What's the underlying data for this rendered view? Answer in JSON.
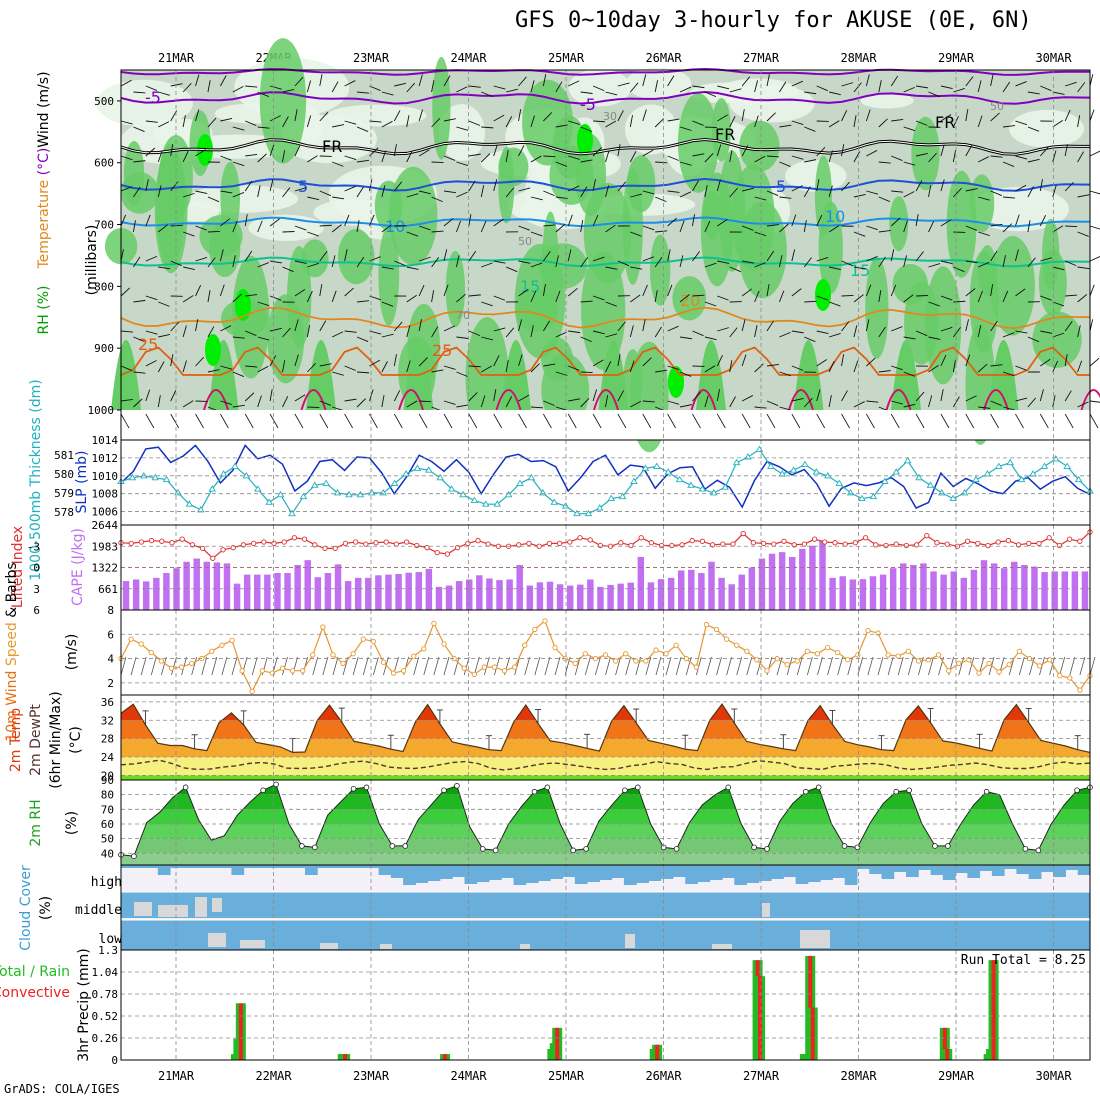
{
  "title": "GFS 0~10day 3-hourly for AKUSE (0E, 6N)",
  "footer": "GrADS: COLA/IGES",
  "dates": [
    "21MAR",
    "22MAR",
    "23MAR",
    "24MAR",
    "25MAR",
    "26MAR",
    "27MAR",
    "28MAR",
    "29MAR",
    "30MAR"
  ],
  "colors": {
    "rh_light": "#e8f5e8",
    "rh_mid": "#c8d8c8",
    "rh_green": "#66cc66",
    "rh_bright": "#00ee00",
    "purple": "#8000c0",
    "blue": "#1e50d8",
    "skyblue": "#1c8ee8",
    "teal": "#10c090",
    "orange": "#e08820",
    "magenta": "#d01070",
    "slp": "#1030c0",
    "thick": "#20b0c0",
    "li": "#e03030",
    "cape": "#c070f0",
    "wind": "#e89830",
    "cloud": "#6aaedc",
    "cloud_clear": "#f4f0f8",
    "precip_total": "#22bb22",
    "precip_conv": "#ee2222"
  },
  "chart_data": [
    {
      "type": "heatmap",
      "name": "Upper-air cross section",
      "ylabel_parts": [
        "RH (%)",
        "Temperature",
        "(°C)",
        "Wind",
        "(m/s)",
        "(millibars)"
      ],
      "y_ticks": [
        500,
        600,
        700,
        800,
        900,
        1000
      ],
      "isotherm_labels": [
        "-5",
        "-5",
        "FR",
        "FR",
        "FR",
        "5",
        "5",
        "10",
        "10",
        "15",
        "15",
        "20",
        "25",
        "25",
        "50",
        "30",
        "50",
        "70"
      ]
    },
    {
      "type": "line",
      "name": "SLP / Thickness",
      "ylabel_left": "1000-500mb Thickness (dm)",
      "ylabel_right": "SLP (mb)",
      "left_ticks": [
        "578",
        "579",
        "580",
        "581"
      ],
      "right_ticks": [
        "1006",
        "1008",
        "1010",
        "1012",
        "1014"
      ],
      "right_ylim": [
        1004.5,
        1014
      ],
      "left_ylim": [
        577.3,
        581.8
      ],
      "slp": [
        1009.2,
        1010.5,
        1013.0,
        1013.2,
        1011.5,
        1012.2,
        1013.4,
        1011.6,
        1009.2,
        1010.6,
        1013.4,
        1011.9,
        1012.3,
        1011.3,
        1008.3,
        1009.4,
        1011.6,
        1011.8,
        1010.6,
        1012.1,
        1012.0,
        1010.3,
        1008.0,
        1009.9,
        1012.3,
        1011.6,
        1010.5,
        1011.8,
        1010.4,
        1008.0,
        1010.2,
        1012.1,
        1012.4,
        1011.6,
        1011.7,
        1011.0,
        1008.3,
        1009.8,
        1011.6,
        1012.3,
        1010.1,
        1011.2,
        1011.0,
        1008.6,
        1010.2,
        1010.9,
        1011.0,
        1008.5,
        1009.5,
        1008.7,
        1006.5,
        1009.5,
        1011.6,
        1011.0,
        1010.1,
        1010.7,
        1009.1,
        1006.6,
        1008.6,
        1009.2,
        1008.9,
        1009.2,
        1009.8,
        1008.8,
        1006.4,
        1007.0,
        1010.3,
        1008.8,
        1009.7,
        1009.1,
        1008.3,
        1008.0,
        1009.4,
        1009.8,
        1008.5,
        1009.4,
        1009.9,
        1008.6,
        1007.9
      ],
      "thickness": [
        579.6,
        579.8,
        579.9,
        579.8,
        579.7,
        579.0,
        578.4,
        578.1,
        579.2,
        580.0,
        580.4,
        579.9,
        579.2,
        578.5,
        578.9,
        577.9,
        578.8,
        579.4,
        579.5,
        579.0,
        578.9,
        578.9,
        579.0,
        579.0,
        579.5,
        580.0,
        580.3,
        580.2,
        579.8,
        579.2,
        578.9,
        578.6,
        578.4,
        578.4,
        578.9,
        579.5,
        579.8,
        579.0,
        578.5,
        578.3,
        577.9,
        577.9,
        578.2,
        578.7,
        578.8,
        579.6,
        580.3,
        580.4,
        580.1,
        579.7,
        579.4,
        579.2,
        579.0,
        579.3,
        580.6,
        580.9,
        581.3,
        580.4,
        580.0,
        580.2,
        580.5,
        580.1,
        579.9,
        579.5,
        579.0,
        578.7,
        578.8,
        579.6,
        580.1,
        580.7,
        579.8,
        579.4,
        579.0,
        578.7,
        579.0,
        579.7,
        580.0,
        580.4,
        580.6,
        579.7,
        580.0,
        580.4,
        580.8,
        580.4,
        579.7,
        579.1
      ]
    },
    {
      "type": "bar",
      "name": "CAPE / Lifted Index",
      "ylabel_left": "Lifted Index",
      "ylabel_right": "CAPE (J/kg)",
      "left_ticks": [
        "-3",
        "0",
        "3",
        "6"
      ],
      "right_ticks": [
        "661",
        "1322",
        "1983",
        "2644"
      ],
      "right_ylim": [
        0,
        2644
      ],
      "left_ylim": [
        6,
        -6
      ],
      "cape": [
        900,
        950,
        890,
        1000,
        1150,
        1300,
        1500,
        1600,
        1500,
        1480,
        1450,
        820,
        1100,
        1100,
        1100,
        1150,
        1150,
        1400,
        1550,
        1020,
        1150,
        1420,
        900,
        1000,
        1000,
        1080,
        1100,
        1120,
        1160,
        1180,
        1280,
        720,
        760,
        900,
        950,
        1080,
        980,
        930,
        950,
        1400,
        760,
        860,
        880,
        800,
        760,
        790,
        950,
        720,
        780,
        820,
        850,
        1650,
        860,
        960,
        1000,
        1230,
        1250,
        1150,
        1500,
        1000,
        800,
        1100,
        1320,
        1600,
        1750,
        1800,
        1650,
        1900,
        2000,
        2150,
        1000,
        1050,
        950,
        960,
        1050,
        1100,
        1300,
        1450,
        1400,
        1450,
        1200,
        1100,
        1200,
        1000,
        1250,
        1550,
        1450,
        1300,
        1500,
        1400,
        1350,
        1180,
        1200,
        1200,
        1200,
        1200
      ],
      "lifted_index": [
        -3.5,
        -3.4,
        -3.6,
        -3.8,
        -3.7,
        -3.5,
        -4.0,
        -3.2,
        -2.7,
        -1.3,
        -2.5,
        -2.8,
        -3.2,
        -3.4,
        -3.6,
        -3.4,
        -3.6,
        -4.2,
        -4.0,
        -3.2,
        -2.7,
        -2.7,
        -3.4,
        -3.6,
        -3.3,
        -3.5,
        -3.6,
        -3.3,
        -3.6,
        -3.1,
        -2.8,
        -2.1,
        -1.9,
        -2.8,
        -3.4,
        -3.8,
        -3.3,
        -3.0,
        -3.0,
        -3.2,
        -3.4,
        -3.0,
        -3.4,
        -3.4,
        -3.6,
        -4.2,
        -3.9,
        -3.1,
        -3.0,
        -3.5,
        -3.1,
        -4.2,
        -3.5,
        -3.1,
        -3.1,
        -3.2,
        -3.8,
        -3.7,
        -3.2,
        -3.3,
        -3.3,
        -4.8,
        -3.5,
        -3.4,
        -3.3,
        -3.7,
        -3.2,
        -3.3,
        -4.0,
        -3.6,
        -3.5,
        -3.3,
        -3.5,
        -4.2,
        -3.2,
        -3.1,
        -3.3,
        -3.1,
        -3.2,
        -4.5,
        -3.5,
        -3.3,
        -3.0,
        -3.7,
        -3.4,
        -3.1,
        -3.6,
        -3.8,
        -3.2,
        -3.4,
        -3.4,
        -4.2,
        -3.1,
        -4.0,
        -3.7,
        -5.0
      ]
    },
    {
      "type": "line",
      "name": "10m Wind",
      "ylabel": "10m Wind Speed & Barbs (m/s)",
      "ticks": [
        "2",
        "4",
        "6",
        "8"
      ],
      "ylim": [
        1,
        8
      ],
      "speed": [
        4.0,
        5.6,
        5.2,
        4.5,
        3.8,
        3.2,
        3.3,
        3.6,
        4.0,
        4.6,
        5.1,
        5.5,
        3.0,
        1.3,
        3.0,
        2.8,
        3.2,
        3.0,
        3.0,
        4.3,
        6.6,
        4.3,
        3.6,
        4.4,
        5.6,
        5.4,
        3.7,
        2.8,
        3.0,
        4.2,
        4.8,
        6.9,
        5.2,
        4.0,
        3.2,
        2.7,
        3.3,
        3.3,
        3.0,
        3.3,
        5.1,
        6.4,
        7.1,
        4.9,
        4.0,
        3.6,
        4.4,
        4.0,
        4.3,
        3.8,
        4.4,
        3.8,
        3.8,
        4.7,
        4.4,
        5.1,
        4.0,
        3.3,
        6.8,
        6.4,
        5.6,
        5.1,
        4.6,
        3.9,
        3.0,
        4.0,
        3.5,
        3.8,
        4.6,
        4.4,
        4.9,
        4.5,
        3.9,
        4.3,
        6.3,
        6.1,
        4.3,
        4.2,
        4.6,
        3.8,
        3.9,
        4.3,
        3.0,
        3.6,
        3.9,
        2.8,
        3.6,
        2.9,
        3.5,
        4.6,
        4.0,
        3.4,
        3.9,
        2.6,
        2.4,
        1.4,
        2.6
      ]
    },
    {
      "type": "area",
      "name": "2m Temperature",
      "ylabel": "2m Temp 2m DewPt (6hr Min/Max) (°C)",
      "ticks": [
        "20",
        "24",
        "28",
        "32",
        "36"
      ],
      "ylim": [
        19,
        37.5
      ],
      "temp": [
        33.5,
        35.5,
        31.0,
        27.0,
        26.5,
        26.5,
        25.8,
        25.4,
        31.5,
        33.6,
        31.0,
        27.2,
        26.7,
        26.2,
        25.0,
        25.1,
        32.0,
        35.3,
        31.6,
        27.4,
        26.9,
        26.4,
        25.7,
        25.2,
        31.6,
        35.4,
        31.2,
        27.3,
        26.7,
        26.2,
        25.6,
        25.4,
        31.5,
        35.3,
        31.3,
        27.5,
        27.1,
        26.5,
        25.9,
        25.3,
        31.8,
        35.2,
        31.4,
        27.6,
        27.0,
        26.4,
        25.7,
        25.4,
        32.0,
        35.5,
        31.4,
        27.4,
        26.8,
        26.3,
        25.8,
        25.4,
        31.9,
        35.2,
        31.1,
        27.4,
        26.7,
        26.2,
        25.6,
        25.4,
        32.1,
        35.1,
        31.5,
        27.5,
        27.1,
        26.5,
        25.9,
        25.3,
        32.1,
        35.4,
        31.5,
        27.6,
        27.0,
        26.4,
        25.6,
        25.0
      ],
      "dewpoint": [
        22.3,
        22.5,
        22.9,
        23.3,
        22.6,
        21.6,
        21.3,
        21.4,
        21.8,
        22.1,
        22.6,
        22.8,
        22.5,
        21.6,
        21.5,
        21.6,
        21.9,
        22.5,
        22.9,
        23.1,
        22.6,
        21.8,
        21.6,
        21.5,
        21.8,
        22.3,
        22.8,
        23.0,
        22.6,
        21.6,
        21.2,
        21.5,
        22.0,
        22.5,
        22.7,
        22.4,
        22.0,
        21.6,
        21.3,
        21.5,
        22.1,
        22.4,
        23.0,
        22.6,
        22.4,
        21.6,
        21.3,
        21.8,
        21.9,
        22.6,
        23.2,
        22.9,
        22.6,
        21.7,
        21.5,
        21.3,
        22.0,
        22.2,
        22.5,
        22.6,
        22.3,
        21.6,
        21.3,
        21.5,
        21.8,
        22.2,
        22.4,
        22.7,
        22.3,
        21.7,
        21.5,
        21.5,
        21.9,
        22.6,
        22.9,
        22.5,
        22.7
      ]
    },
    {
      "type": "area",
      "name": "2m RH",
      "ylabel": "2m RH (%)",
      "ticks": [
        "40",
        "50",
        "60",
        "70",
        "80",
        "90"
      ],
      "ylim": [
        32,
        90
      ],
      "rh": [
        39,
        38,
        61,
        68,
        78,
        85,
        63,
        49,
        52,
        66,
        75,
        83,
        87,
        60,
        45,
        44,
        66,
        75,
        84,
        85,
        60,
        45,
        45,
        63,
        73,
        83,
        86,
        58,
        43,
        42,
        60,
        72,
        82,
        85,
        60,
        42,
        43,
        62,
        73,
        83,
        85,
        60,
        44,
        43,
        61,
        73,
        80,
        85,
        60,
        44,
        43,
        62,
        74,
        82,
        85,
        60,
        45,
        44,
        61,
        74,
        82,
        83,
        60,
        45,
        45,
        60,
        73,
        82,
        80,
        60,
        43,
        42,
        60,
        73,
        83,
        85
      ]
    },
    {
      "type": "heatmap",
      "name": "Cloud Cover",
      "ylabel": "Cloud Cover (%)",
      "level_labels": [
        "high",
        "middle",
        "low"
      ]
    },
    {
      "type": "bar",
      "name": "3hr Precip",
      "ylabel": "3hr Precip (mm)",
      "left_label_parts": [
        "Total / Rain",
        "Convective"
      ],
      "ticks": [
        "0",
        "0.26",
        "0.52",
        "0.78",
        "1.04",
        "1.3"
      ],
      "ylim": [
        0,
        1.3
      ],
      "run_total": "Run Total = 8.25",
      "bars": [
        {
          "t": 8.65,
          "v": 0.07
        },
        {
          "t": 8.9,
          "v": 0.25
        },
        {
          "t": 9.15,
          "v": 0.67
        },
        {
          "t": 19.6,
          "v": 0.07
        },
        {
          "t": 19.85,
          "v": 0.07
        },
        {
          "t": 30.1,
          "v": 0.07
        },
        {
          "t": 41.1,
          "v": 0.13
        },
        {
          "t": 41.35,
          "v": 0.2
        },
        {
          "t": 41.6,
          "v": 0.38
        },
        {
          "t": 51.6,
          "v": 0.13
        },
        {
          "t": 51.85,
          "v": 0.18
        },
        {
          "t": 62.15,
          "v": 1.18
        },
        {
          "t": 62.4,
          "v": 0.99
        },
        {
          "t": 67.0,
          "v": 0.07
        },
        {
          "t": 67.3,
          "v": 0.07
        },
        {
          "t": 67.55,
          "v": 1.23
        },
        {
          "t": 67.8,
          "v": 0.62
        },
        {
          "t": 81.35,
          "v": 0.38
        },
        {
          "t": 81.6,
          "v": 0.13
        },
        {
          "t": 85.85,
          "v": 0.07
        },
        {
          "t": 86.1,
          "v": 0.13
        },
        {
          "t": 86.35,
          "v": 1.18
        }
      ]
    }
  ]
}
